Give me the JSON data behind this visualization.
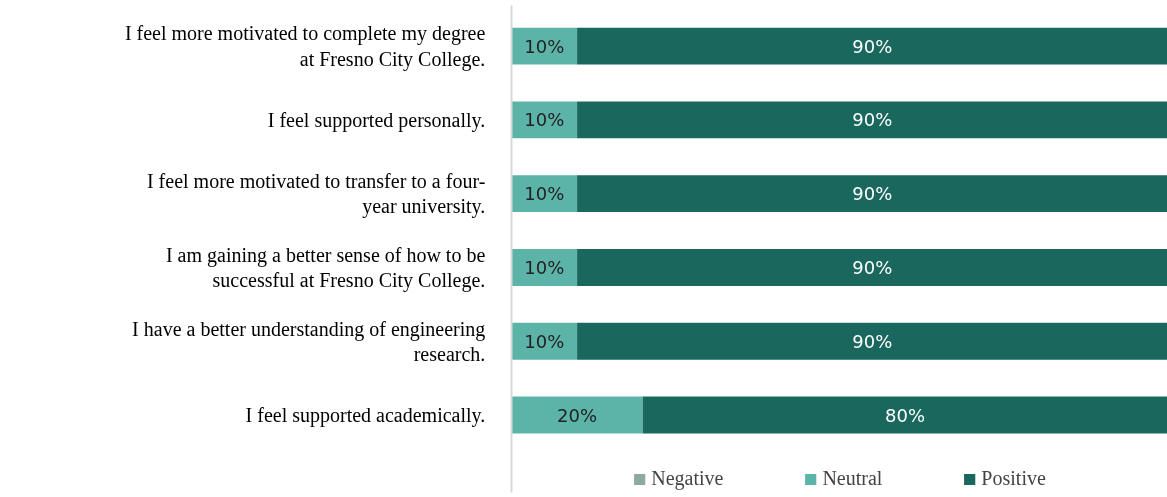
{
  "chart_data": {
    "type": "bar",
    "orientation": "horizontal",
    "stacked": true,
    "categories": [
      "I feel more motivated to complete my degree at Fresno City College.",
      "I feel supported personally.",
      "I feel more motivated to transfer to a four-year university.",
      "I am gaining a better sense of how to be successful at Fresno City College.",
      "I have a better understanding of engineering research.",
      "I feel supported academically."
    ],
    "xlim": [
      0,
      100
    ],
    "tick_labels": "y",
    "grid": false,
    "legend": "bottom",
    "series": [
      {
        "name": "Negative",
        "color": "#8fa9a1",
        "values": [
          0,
          0,
          0,
          0,
          0,
          0
        ],
        "value_labels": [
          null,
          null,
          null,
          null,
          null,
          null
        ]
      },
      {
        "name": "Neutral",
        "color": "#5cb4a9",
        "values": [
          10,
          10,
          10,
          10,
          10,
          20
        ],
        "value_labels": [
          "10%",
          "10%",
          "10%",
          "10%",
          "10%",
          "20%"
        ]
      },
      {
        "name": "Positive",
        "color": "#19675d",
        "values": [
          90,
          90,
          90,
          90,
          90,
          80
        ],
        "value_labels": [
          "90%",
          "90%",
          "90%",
          "90%",
          "90%",
          "80%"
        ]
      }
    ]
  }
}
